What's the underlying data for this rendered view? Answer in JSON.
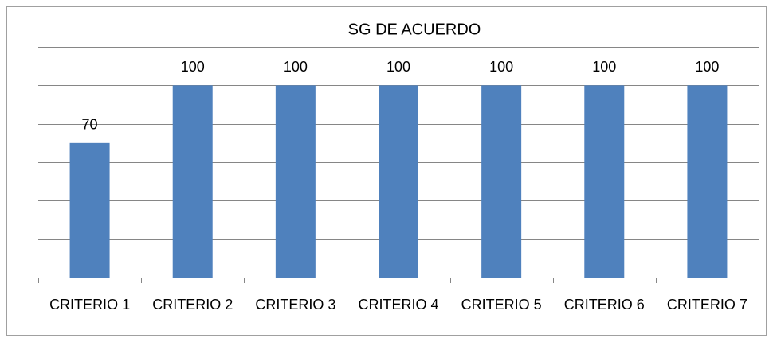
{
  "chart_data": {
    "type": "bar",
    "title": "SG  DE ACUERDO",
    "categories": [
      "CRITERIO 1",
      "CRITERIO 2",
      "CRITERIO 3",
      "CRITERIO 4",
      "CRITERIO 5",
      "CRITERIO 6",
      "CRITERIO 7"
    ],
    "values": [
      70,
      100,
      100,
      100,
      100,
      100,
      100
    ],
    "color": "#4f81bd",
    "ylim": [
      0,
      120
    ],
    "yticks": [
      0,
      20,
      40,
      60,
      80,
      100,
      120
    ],
    "grid": true
  }
}
